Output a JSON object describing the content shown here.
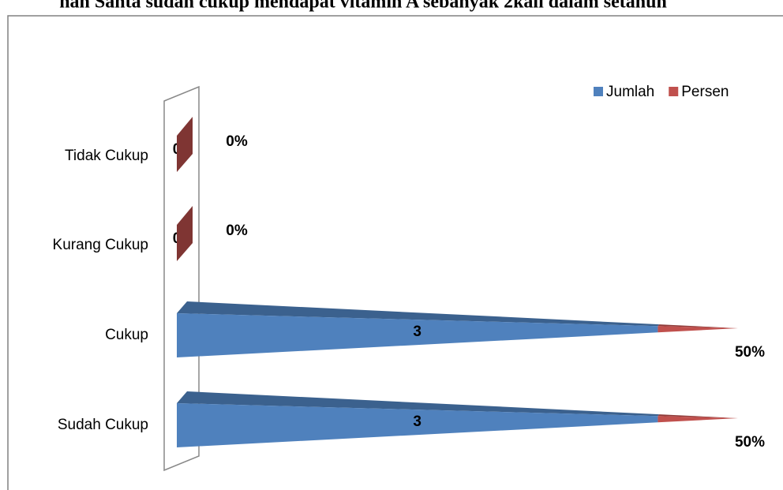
{
  "chart_data": {
    "type": "bar3d_horizontal_stacked",
    "title": "nah Santa sudah cukup mendapat vitamin A sebanyak 2kali dalam setahun",
    "categories": [
      "Sudah Cukup",
      "Cukup",
      "Kurang Cukup",
      "Tidak Cukup"
    ],
    "series": [
      {
        "name": "Jumlah",
        "color": "#4f81bd",
        "values": [
          3,
          3,
          0,
          0
        ]
      },
      {
        "name": "Persen",
        "color": "#c0504d",
        "values": [
          0.5,
          0.5,
          0,
          0
        ],
        "value_labels": [
          "50%",
          "50%",
          "0%",
          "0%"
        ]
      }
    ],
    "xlim": [
      0,
      3.5
    ],
    "legend": "top-right"
  }
}
